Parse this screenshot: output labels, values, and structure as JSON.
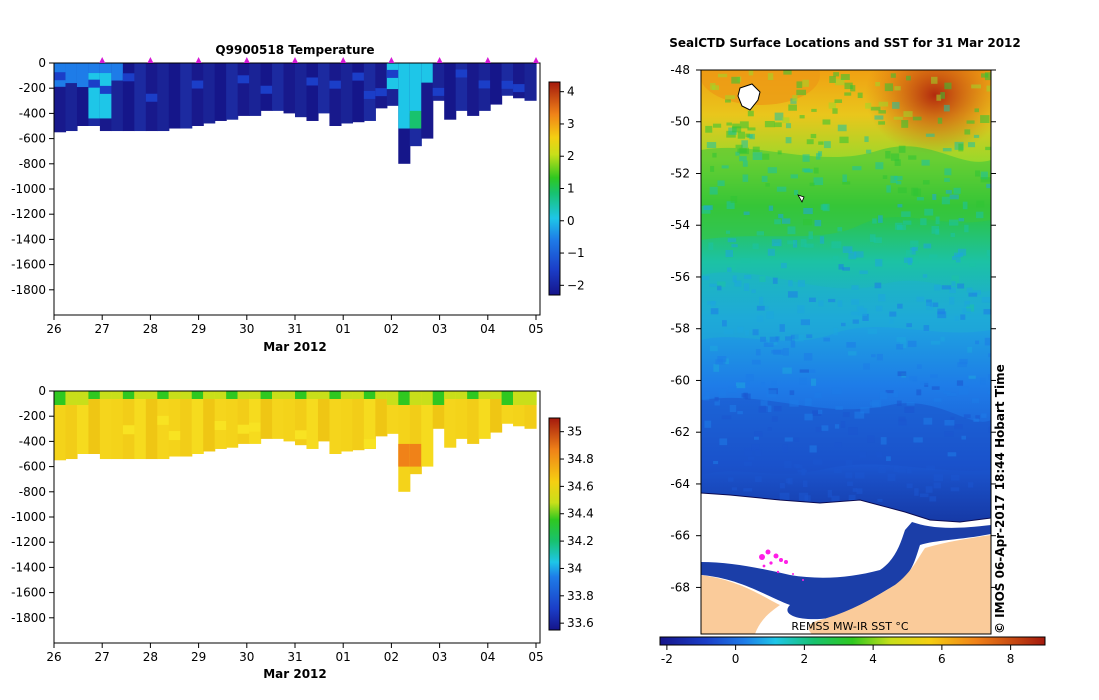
{
  "chart_data": [
    {
      "id": "temperature",
      "type": "heatmap",
      "title": "Q9900518  Temperature",
      "xlabel": "Mar 2012",
      "ylabel": "",
      "x_tick_labels": [
        "26",
        "27",
        "28",
        "29",
        "30",
        "31",
        "01",
        "02",
        "03",
        "04",
        "05"
      ],
      "y_ticks": [
        0,
        -200,
        -400,
        -600,
        -800,
        -1000,
        -1200,
        -1400,
        -1600,
        -1800
      ],
      "y_tick_labels": [
        "0",
        "-200",
        "-400",
        "-600",
        "-800",
        "-1000",
        "-1200",
        "-1400",
        "-1600",
        "-1800"
      ],
      "ylim": [
        -2000,
        0
      ],
      "colorbar": {
        "min": -2.3,
        "max": 4.3,
        "ticks": [
          4,
          3,
          2,
          1,
          0,
          -1,
          -2
        ],
        "tick_labels": [
          "4",
          "3",
          "2",
          "1",
          "0",
          "−1",
          "−2"
        ]
      },
      "profile_max_depth_m": [
        550,
        540,
        500,
        500,
        540,
        540,
        540,
        540,
        540,
        540,
        520,
        520,
        500,
        480,
        460,
        450,
        420,
        420,
        380,
        380,
        400,
        430,
        460,
        400,
        500,
        480,
        470,
        460,
        360,
        340,
        800,
        660,
        600,
        300,
        450,
        380,
        420,
        380,
        330,
        260,
        280,
        300
      ],
      "station_markers_day": [
        "27",
        "28",
        "29",
        "30",
        "31",
        "01",
        "02",
        "03",
        "04",
        "05"
      ]
    },
    {
      "id": "salinity",
      "type": "heatmap",
      "title": "",
      "xlabel": "Mar 2012",
      "ylabel": "",
      "x_tick_labels": [
        "26",
        "27",
        "28",
        "29",
        "30",
        "31",
        "01",
        "02",
        "03",
        "04",
        "05"
      ],
      "y_ticks": [
        0,
        -200,
        -400,
        -600,
        -800,
        -1000,
        -1200,
        -1400,
        -1600,
        -1800
      ],
      "y_tick_labels": [
        "0",
        "-200",
        "-400",
        "-600",
        "-800",
        "-1000",
        "-1200",
        "-1400",
        "-1600",
        "-1800"
      ],
      "ylim": [
        -2000,
        0
      ],
      "colorbar": {
        "min": 33.55,
        "max": 35.1,
        "ticks": [
          35,
          34.8,
          34.6,
          34.4,
          34.2,
          34,
          33.8,
          33.6
        ],
        "tick_labels": [
          "35",
          "34.8",
          "34.6",
          "34.4",
          "34.2",
          "34",
          "33.8",
          "33.6"
        ]
      },
      "profile_max_depth_m": [
        550,
        540,
        500,
        500,
        540,
        540,
        540,
        540,
        540,
        540,
        520,
        520,
        500,
        480,
        460,
        450,
        420,
        420,
        380,
        380,
        400,
        430,
        460,
        400,
        500,
        480,
        470,
        460,
        360,
        340,
        800,
        660,
        600,
        300,
        450,
        380,
        420,
        380,
        330,
        260,
        280,
        300
      ]
    },
    {
      "id": "sst-map",
      "type": "heatmap",
      "title": "SealCTD Surface Locations and SST for 31 Mar 2012",
      "y_tick_labels": [
        "-48",
        "-50",
        "-52",
        "-54",
        "-56",
        "-58",
        "-60",
        "-62",
        "-64",
        "-66",
        "-68"
      ],
      "ylim": [
        -69.8,
        -48
      ],
      "colorbar": {
        "min": -2.2,
        "max": 9.0,
        "ticks": [
          -2,
          0,
          2,
          4,
          6,
          8
        ],
        "tick_labels": [
          "-2",
          "0",
          "2",
          "4",
          "6",
          "8"
        ],
        "label": "REMSS MW-IR SST °C"
      },
      "credit": "©  IMOS 06-Apr-2017 18:44 Hobart Time"
    }
  ]
}
